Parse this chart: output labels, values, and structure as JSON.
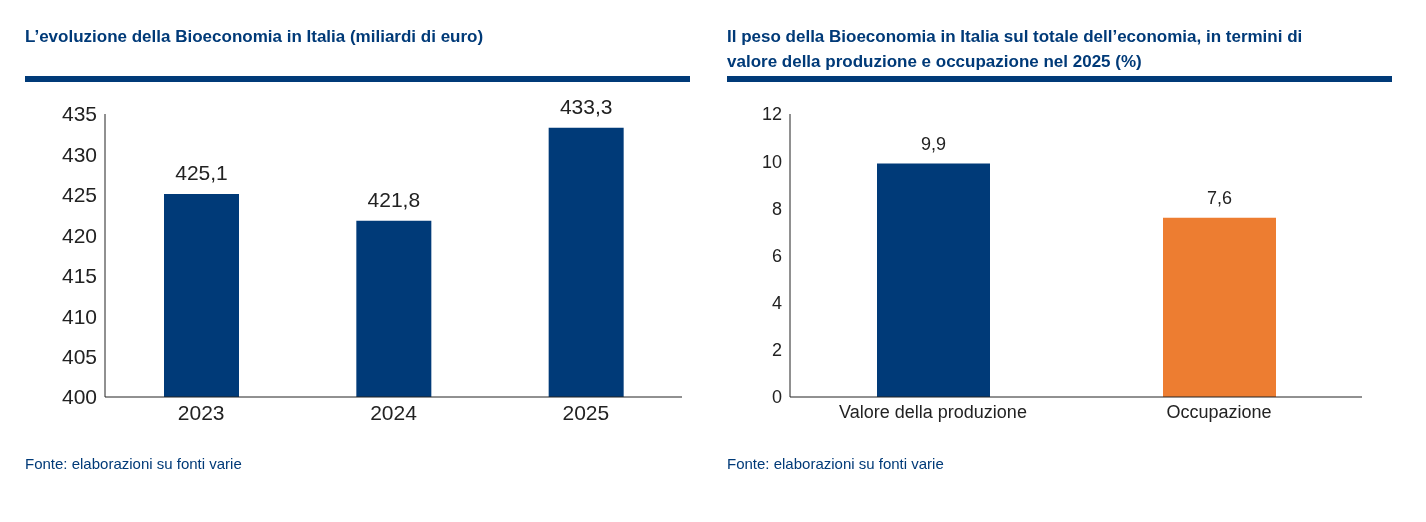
{
  "chart_data": [
    {
      "type": "bar",
      "title": "L’evoluzione della Bioeconomia in Italia (miliardi di euro)",
      "categories": [
        "2023",
        "2024",
        "2025"
      ],
      "values": [
        425.1,
        421.8,
        433.3
      ],
      "value_labels": [
        "425,1",
        "421,8",
        "433,3"
      ],
      "color": "#003a78",
      "ylim": [
        400,
        435
      ],
      "yticks": [
        400,
        405,
        410,
        415,
        420,
        425,
        430,
        435
      ],
      "annotations": [
        "Fonte: elaborazioni su fonti varie"
      ]
    },
    {
      "type": "bar",
      "title": "Il peso della Bioeconomia in Italia sul totale dell’economia, in termini di valore della produzione e occupazione nel 2025 (%)",
      "categories": [
        "Valore della produzione",
        "Occupazione"
      ],
      "values": [
        9.9,
        7.6
      ],
      "value_labels": [
        "9,9",
        "7,6"
      ],
      "colors": [
        "#003a78",
        "#ed7d31"
      ],
      "ylim": [
        0,
        12
      ],
      "yticks": [
        0,
        2,
        4,
        6,
        8,
        10,
        12
      ],
      "annotations": [
        "Fonte: elaborazioni su fonti varie"
      ]
    }
  ]
}
